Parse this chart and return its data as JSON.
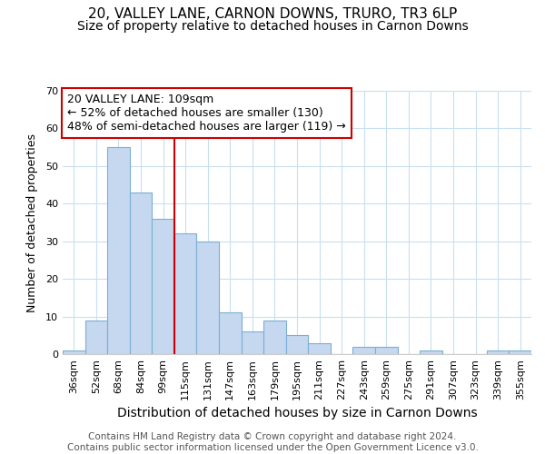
{
  "title": "20, VALLEY LANE, CARNON DOWNS, TRURO, TR3 6LP",
  "subtitle": "Size of property relative to detached houses in Carnon Downs",
  "xlabel": "Distribution of detached houses by size in Carnon Downs",
  "ylabel": "Number of detached properties",
  "bin_labels": [
    "36sqm",
    "52sqm",
    "68sqm",
    "84sqm",
    "99sqm",
    "115sqm",
    "131sqm",
    "147sqm",
    "163sqm",
    "179sqm",
    "195sqm",
    "211sqm",
    "227sqm",
    "243sqm",
    "259sqm",
    "275sqm",
    "291sqm",
    "307sqm",
    "323sqm",
    "339sqm",
    "355sqm"
  ],
  "bar_heights": [
    1,
    9,
    55,
    43,
    36,
    32,
    30,
    11,
    6,
    9,
    5,
    3,
    0,
    2,
    2,
    0,
    1,
    0,
    0,
    1,
    1
  ],
  "bar_color": "#c5d8f0",
  "bar_edge_color": "#7bafd4",
  "vline_x_index": 5,
  "vline_color": "#cc0000",
  "ylim": [
    0,
    70
  ],
  "yticks": [
    0,
    10,
    20,
    30,
    40,
    50,
    60,
    70
  ],
  "annotation_text": "20 VALLEY LANE: 109sqm\n← 52% of detached houses are smaller (130)\n48% of semi-detached houses are larger (119) →",
  "footer_line1": "Contains HM Land Registry data © Crown copyright and database right 2024.",
  "footer_line2": "Contains public sector information licensed under the Open Government Licence v3.0.",
  "title_fontsize": 11,
  "subtitle_fontsize": 10,
  "xlabel_fontsize": 10,
  "ylabel_fontsize": 9,
  "annotation_fontsize": 9,
  "footer_fontsize": 7.5,
  "tick_fontsize": 8
}
